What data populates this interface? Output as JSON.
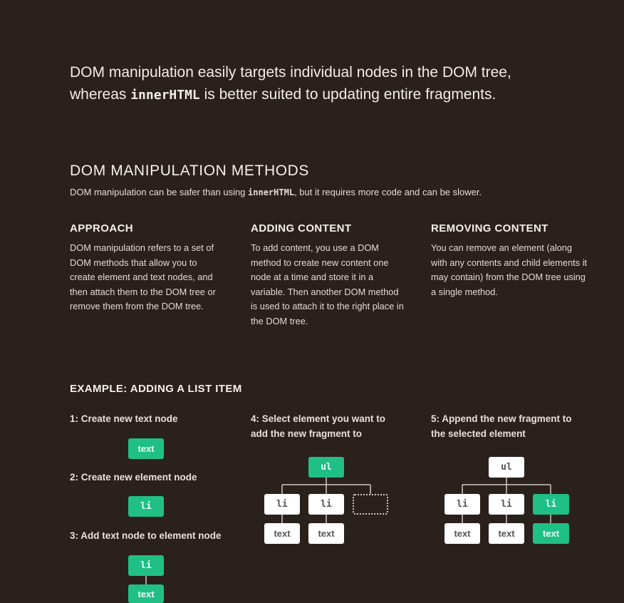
{
  "lead": {
    "line1": "DOM manipulation easily targets individual nodes in the DOM tree,",
    "line2_pre": "whereas ",
    "line2_code": "innerHTML",
    "line2_post": " is better suited to updating entire fragments."
  },
  "section": {
    "title": "DOM MANIPULATION METHODS",
    "sub_pre": "DOM manipulation can be safer than using ",
    "sub_code": "innerHTML",
    "sub_post": ", but it requires more code and can be slower."
  },
  "columns": [
    {
      "heading": "APPROACH",
      "body": "DOM manipulation refers to a set of DOM methods that allow you to create element and text nodes, and then attach them to the DOM tree or remove them from the DOM tree."
    },
    {
      "heading": "ADDING CONTENT",
      "body": "To add content, you use a DOM method to create new content one node at a time and store it in a variable. Then another DOM method is used to attach it to the right place in the DOM tree."
    },
    {
      "heading": "REMOVING CONTENT",
      "body": "You can remove an element (along with any contents and child elements it may contain) from the DOM tree using a single method."
    }
  ],
  "example": {
    "title": "EXAMPLE: ADDING A LIST ITEM",
    "steps": [
      "1: Create new text node",
      "2: Create new element node",
      "3: Add text node to element node",
      "4: Select element you want to add the new fragment to",
      "5: Append the new fragment to the selected element"
    ],
    "labels": {
      "text": "text",
      "li": "li",
      "ul": "ul"
    }
  },
  "colors": {
    "background": "#2a201c",
    "highlight": "#1fbf86",
    "node": "#ffffff"
  }
}
